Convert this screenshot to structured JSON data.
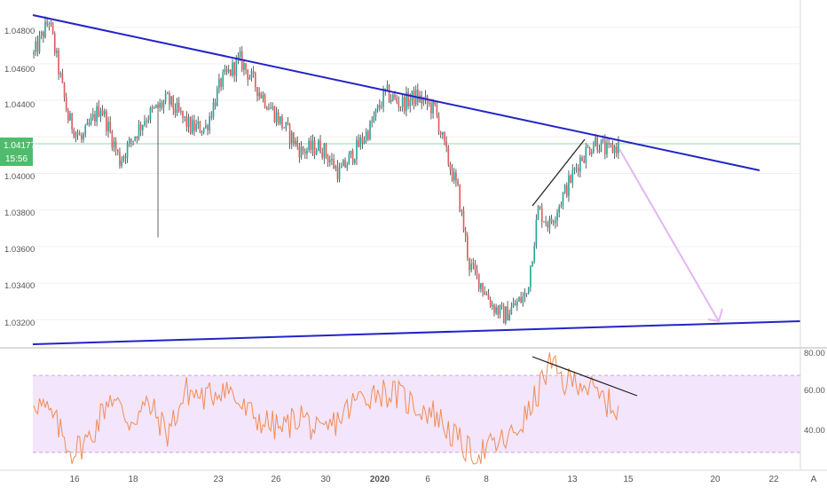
{
  "colors": {
    "up": "#26a69a",
    "down": "#e05b5b",
    "trendline": "#2323c8",
    "rsi_line": "#f28c53",
    "rsi_band": "#f3e5fb",
    "arrow": "#e3b6f3",
    "last_price_tag": "#4fbc6d",
    "price_line": "#9ad6b0"
  },
  "x_axis": {
    "labels": [
      "16",
      "18",
      "23",
      "26",
      "30",
      "2020",
      "6",
      "8",
      "13",
      "15",
      "20",
      "22"
    ],
    "corner_label": "A"
  },
  "price_axis": {
    "labels": [
      "1.04800",
      "1.04600",
      "1.04400",
      "1.04200",
      "1.04000",
      "1.03800",
      "1.03600",
      "1.03400",
      "1.03200"
    ],
    "last_price": "1.04177",
    "countdown": "15:56"
  },
  "rsi_axis": {
    "labels": [
      "80.00",
      "60.00",
      "40.00"
    ],
    "upper_band": 70,
    "lower_band": 30
  },
  "chart_data": [
    {
      "type": "candlestick",
      "ylim": [
        1.0308,
        1.049
      ],
      "x_ticks": [
        "16",
        "18",
        "23",
        "26",
        "30",
        "2020",
        "6",
        "8",
        "13",
        "15",
        "20",
        "22"
      ],
      "anchors": [
        {
          "i": 0,
          "v": 1.0465
        },
        {
          "i": 8,
          "v": 1.0484
        },
        {
          "i": 18,
          "v": 1.043
        },
        {
          "i": 25,
          "v": 1.0418
        },
        {
          "i": 35,
          "v": 1.0437
        },
        {
          "i": 45,
          "v": 1.0407
        },
        {
          "i": 58,
          "v": 1.043
        },
        {
          "i": 70,
          "v": 1.044
        },
        {
          "i": 82,
          "v": 1.0425
        },
        {
          "i": 90,
          "v": 1.0425
        },
        {
          "i": 98,
          "v": 1.045
        },
        {
          "i": 108,
          "v": 1.0462
        },
        {
          "i": 118,
          "v": 1.0445
        },
        {
          "i": 128,
          "v": 1.043
        },
        {
          "i": 140,
          "v": 1.0412
        },
        {
          "i": 150,
          "v": 1.0415
        },
        {
          "i": 160,
          "v": 1.04
        },
        {
          "i": 168,
          "v": 1.0412
        },
        {
          "i": 176,
          "v": 1.0425
        },
        {
          "i": 184,
          "v": 1.0444
        },
        {
          "i": 192,
          "v": 1.0438
        },
        {
          "i": 200,
          "v": 1.0442
        },
        {
          "i": 210,
          "v": 1.0435
        },
        {
          "i": 216,
          "v": 1.041
        },
        {
          "i": 222,
          "v": 1.039
        },
        {
          "i": 228,
          "v": 1.035
        },
        {
          "i": 234,
          "v": 1.034
        },
        {
          "i": 240,
          "v": 1.0328
        },
        {
          "i": 246,
          "v": 1.0322
        },
        {
          "i": 252,
          "v": 1.0328
        },
        {
          "i": 258,
          "v": 1.0334
        },
        {
          "i": 264,
          "v": 1.038
        },
        {
          "i": 270,
          "v": 1.0372
        },
        {
          "i": 278,
          "v": 1.039
        },
        {
          "i": 286,
          "v": 1.0408
        },
        {
          "i": 294,
          "v": 1.0418
        },
        {
          "i": 300,
          "v": 1.0412
        },
        {
          "i": 306,
          "v": 1.0415
        }
      ],
      "count": 307,
      "trendlines": [
        {
          "name": "upper",
          "from": [
            37,
            17
          ],
          "to": [
            856,
            192
          ]
        },
        {
          "name": "lower",
          "from": [
            37,
            388
          ],
          "to": [
            902,
            362
          ]
        },
        {
          "name": "rising-leg",
          "from": [
            600,
            232
          ],
          "to": [
            659,
            157
          ]
        }
      ],
      "projection_arrow": {
        "from": [
          698,
          168
        ],
        "to": [
          810,
          362
        ]
      }
    },
    {
      "type": "line",
      "title": "",
      "ylim": [
        23,
        83
      ],
      "bands": [
        30,
        70
      ],
      "anchors": [
        {
          "i": 0,
          "v": 58
        },
        {
          "i": 10,
          "v": 48
        },
        {
          "i": 20,
          "v": 30
        },
        {
          "i": 30,
          "v": 38
        },
        {
          "i": 40,
          "v": 60
        },
        {
          "i": 50,
          "v": 46
        },
        {
          "i": 60,
          "v": 55
        },
        {
          "i": 70,
          "v": 40
        },
        {
          "i": 80,
          "v": 62
        },
        {
          "i": 90,
          "v": 58
        },
        {
          "i": 100,
          "v": 65
        },
        {
          "i": 110,
          "v": 52
        },
        {
          "i": 120,
          "v": 46
        },
        {
          "i": 130,
          "v": 42
        },
        {
          "i": 140,
          "v": 50
        },
        {
          "i": 150,
          "v": 38
        },
        {
          "i": 160,
          "v": 48
        },
        {
          "i": 170,
          "v": 58
        },
        {
          "i": 180,
          "v": 62
        },
        {
          "i": 190,
          "v": 60
        },
        {
          "i": 200,
          "v": 54
        },
        {
          "i": 210,
          "v": 50
        },
        {
          "i": 220,
          "v": 38
        },
        {
          "i": 230,
          "v": 28
        },
        {
          "i": 240,
          "v": 33
        },
        {
          "i": 250,
          "v": 38
        },
        {
          "i": 260,
          "v": 52
        },
        {
          "i": 270,
          "v": 76
        },
        {
          "i": 278,
          "v": 66
        },
        {
          "i": 286,
          "v": 68
        },
        {
          "i": 294,
          "v": 60
        },
        {
          "i": 300,
          "v": 56
        },
        {
          "i": 306,
          "v": 52
        }
      ],
      "count": 307,
      "divergence_line": {
        "from": [
          600,
          402
        ],
        "to": [
          718,
          446
        ]
      }
    }
  ]
}
